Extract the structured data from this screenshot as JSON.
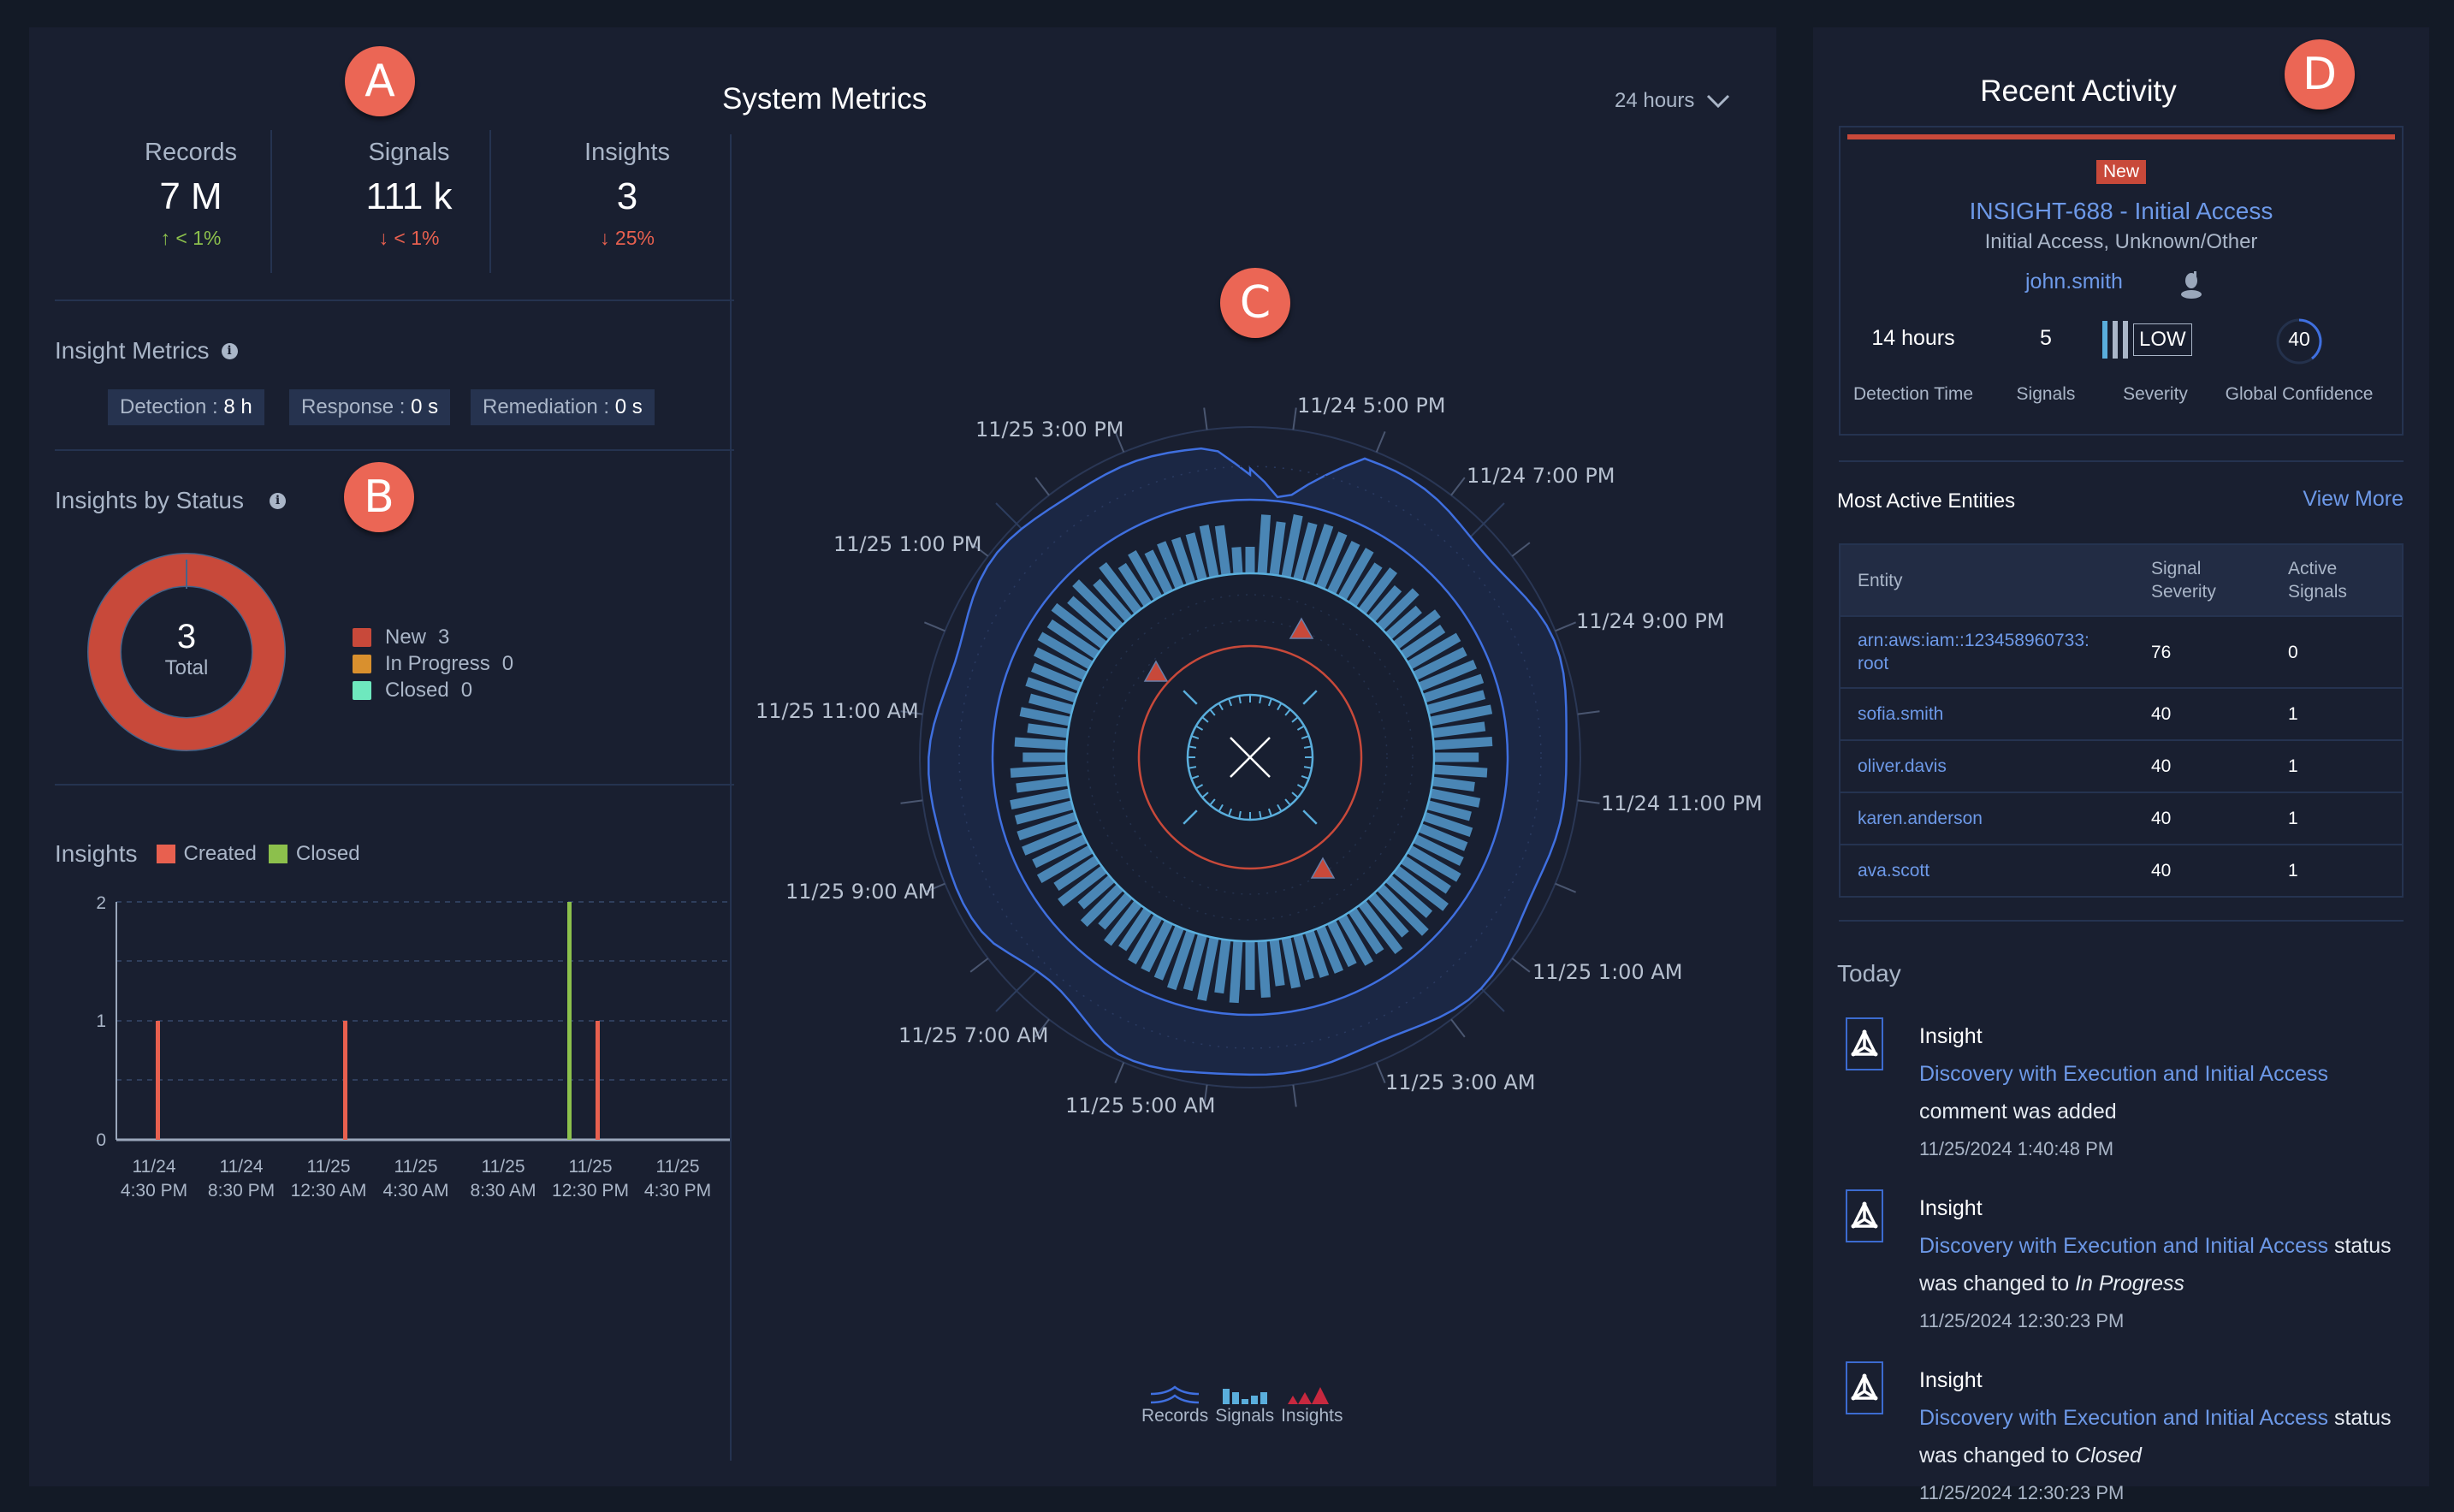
{
  "markers": {
    "a": "A",
    "b": "B",
    "c": "C",
    "d": "D"
  },
  "header": {
    "title": "System Metrics",
    "time_range": "24 hours",
    "time_range_icon": "chevron-down-icon"
  },
  "stats": [
    {
      "label": "Records",
      "value": "7 M",
      "delta": "< 1%",
      "direction": "up",
      "arrow": "↑"
    },
    {
      "label": "Signals",
      "value": "111 k",
      "delta": "< 1%",
      "direction": "down",
      "arrow": "↓"
    },
    {
      "label": "Insights",
      "value": "3",
      "delta": "25%",
      "direction": "down",
      "arrow": "↓"
    }
  ],
  "insight_metrics": {
    "title": "Insight Metrics",
    "chips": [
      {
        "label": "Detection",
        "value": "8 h"
      },
      {
        "label": "Response",
        "value": "0 s"
      },
      {
        "label": "Remediation",
        "value": "0 s"
      }
    ]
  },
  "insights_by_status": {
    "title": "Insights by Status",
    "total": "3",
    "total_label": "Total",
    "legend": [
      {
        "label": "New",
        "count": "3",
        "color": "#c8493a"
      },
      {
        "label": "In Progress",
        "count": "0",
        "color": "#d9902e"
      },
      {
        "label": "Closed",
        "count": "0",
        "color": "#6ee8be"
      }
    ]
  },
  "insights_chart": {
    "title": "Insights",
    "legend": [
      {
        "label": "Created",
        "color": "#e8604f"
      },
      {
        "label": "Closed",
        "color": "#8cc04c"
      }
    ]
  },
  "radial_legend": [
    {
      "label": "Records",
      "icon": "records-wave-icon"
    },
    {
      "label": "Signals",
      "icon": "signals-bars-icon"
    },
    {
      "label": "Insights",
      "icon": "insights-triangles-icon"
    }
  ],
  "recent_activity": {
    "title": "Recent Activity",
    "card": {
      "status": "New",
      "title": "INSIGHT-688 - Initial Access",
      "tactics": "Initial Access, Unknown/Other",
      "entity": "john.smith",
      "detection_time": "14 hours",
      "detection_time_label": "Detection Time",
      "signals": "5",
      "signals_label": "Signals",
      "severity": "LOW",
      "severity_label": "Severity",
      "confidence": "40",
      "confidence_label": "Global Confidence"
    },
    "entities": {
      "title": "Most Active Entities",
      "view_more": "View More",
      "columns": [
        "Entity",
        "Signal Severity",
        "Active Signals"
      ],
      "rows": [
        {
          "entity": "arn:aws:iam::123458960733:root",
          "severity": "76",
          "active": "0"
        },
        {
          "entity": "sofia.smith",
          "severity": "40",
          "active": "1"
        },
        {
          "entity": "oliver.davis",
          "severity": "40",
          "active": "1"
        },
        {
          "entity": "karen.anderson",
          "severity": "40",
          "active": "1"
        },
        {
          "entity": "ava.scott",
          "severity": "40",
          "active": "1"
        }
      ]
    },
    "feed": {
      "heading": "Today",
      "items": [
        {
          "type": "Insight",
          "link": "Discovery with Execution and Initial Access",
          "suffix": "",
          "line2": "comment was added",
          "status": "",
          "time": "11/25/2024 1:40:48 PM"
        },
        {
          "type": "Insight",
          "link": "Discovery with Execution and Initial Access",
          "suffix": " status",
          "line2": "was changed to ",
          "status": "In Progress",
          "time": "11/25/2024 12:30:23 PM"
        },
        {
          "type": "Insight",
          "link": "Discovery with Execution and Initial Access",
          "suffix": " status",
          "line2": "was changed to ",
          "status": "Closed",
          "time": "11/25/2024 12:30:23 PM"
        }
      ]
    }
  },
  "colors": {
    "page_bg": "#131a26",
    "panel_bg": "#191f30",
    "divider": "#253350",
    "accent_red": "#c8493a",
    "link_blue": "#6d99e8",
    "signals_bar": "#4a86b5",
    "records_line": "#3f6fdf",
    "insight_triangle": "#c8493a"
  },
  "chart_data": [
    {
      "type": "pie",
      "title": "Insights by Status",
      "categories": [
        "New",
        "In Progress",
        "Closed"
      ],
      "values": [
        3,
        0,
        0
      ],
      "center_label": "3 Total"
    },
    {
      "type": "bar",
      "title": "Insights",
      "categories": [
        "11/24 4:30 PM",
        "11/24 8:30 PM",
        "11/25 12:30 AM",
        "11/25 4:30 AM",
        "11/25 8:30 AM",
        "11/25 12:30 PM",
        "11/25 4:30 PM"
      ],
      "series": [
        {
          "name": "Created",
          "points": [
            {
              "x": "11/24 5:30 PM",
              "y": 1
            },
            {
              "x": "11/25 2:30 AM",
              "y": 1
            },
            {
              "x": "11/25 1:40 PM",
              "y": 1
            }
          ]
        },
        {
          "name": "Closed",
          "points": [
            {
              "x": "11/25 12:30 PM",
              "y": 2
            }
          ]
        }
      ],
      "yticks": [
        0,
        1,
        2
      ],
      "ylim": [
        0,
        2
      ],
      "grid": true,
      "legend_position": "top"
    },
    {
      "type": "radial",
      "title": "System Metrics (24 hours)",
      "angular_labels": [
        "11/24 5:00 PM",
        "11/24 7:00 PM",
        "11/24 9:00 PM",
        "11/24 11:00 PM",
        "11/25 1:00 AM",
        "11/25 3:00 AM",
        "11/25 5:00 AM",
        "11/25 7:00 AM",
        "11/25 9:00 AM",
        "11/25 11:00 AM",
        "11/25 1:00 PM",
        "11/25 3:00 PM"
      ],
      "series": [
        {
          "name": "Records",
          "kind": "radial-area",
          "note": "near-constant outer band, dip at ~11/24 4:30 PM"
        },
        {
          "name": "Signals",
          "kind": "radial-bars",
          "bars": 96
        },
        {
          "name": "Insights",
          "kind": "markers",
          "count": 3
        }
      ],
      "legend": [
        "Records",
        "Signals",
        "Insights"
      ],
      "legend_position": "bottom"
    }
  ]
}
